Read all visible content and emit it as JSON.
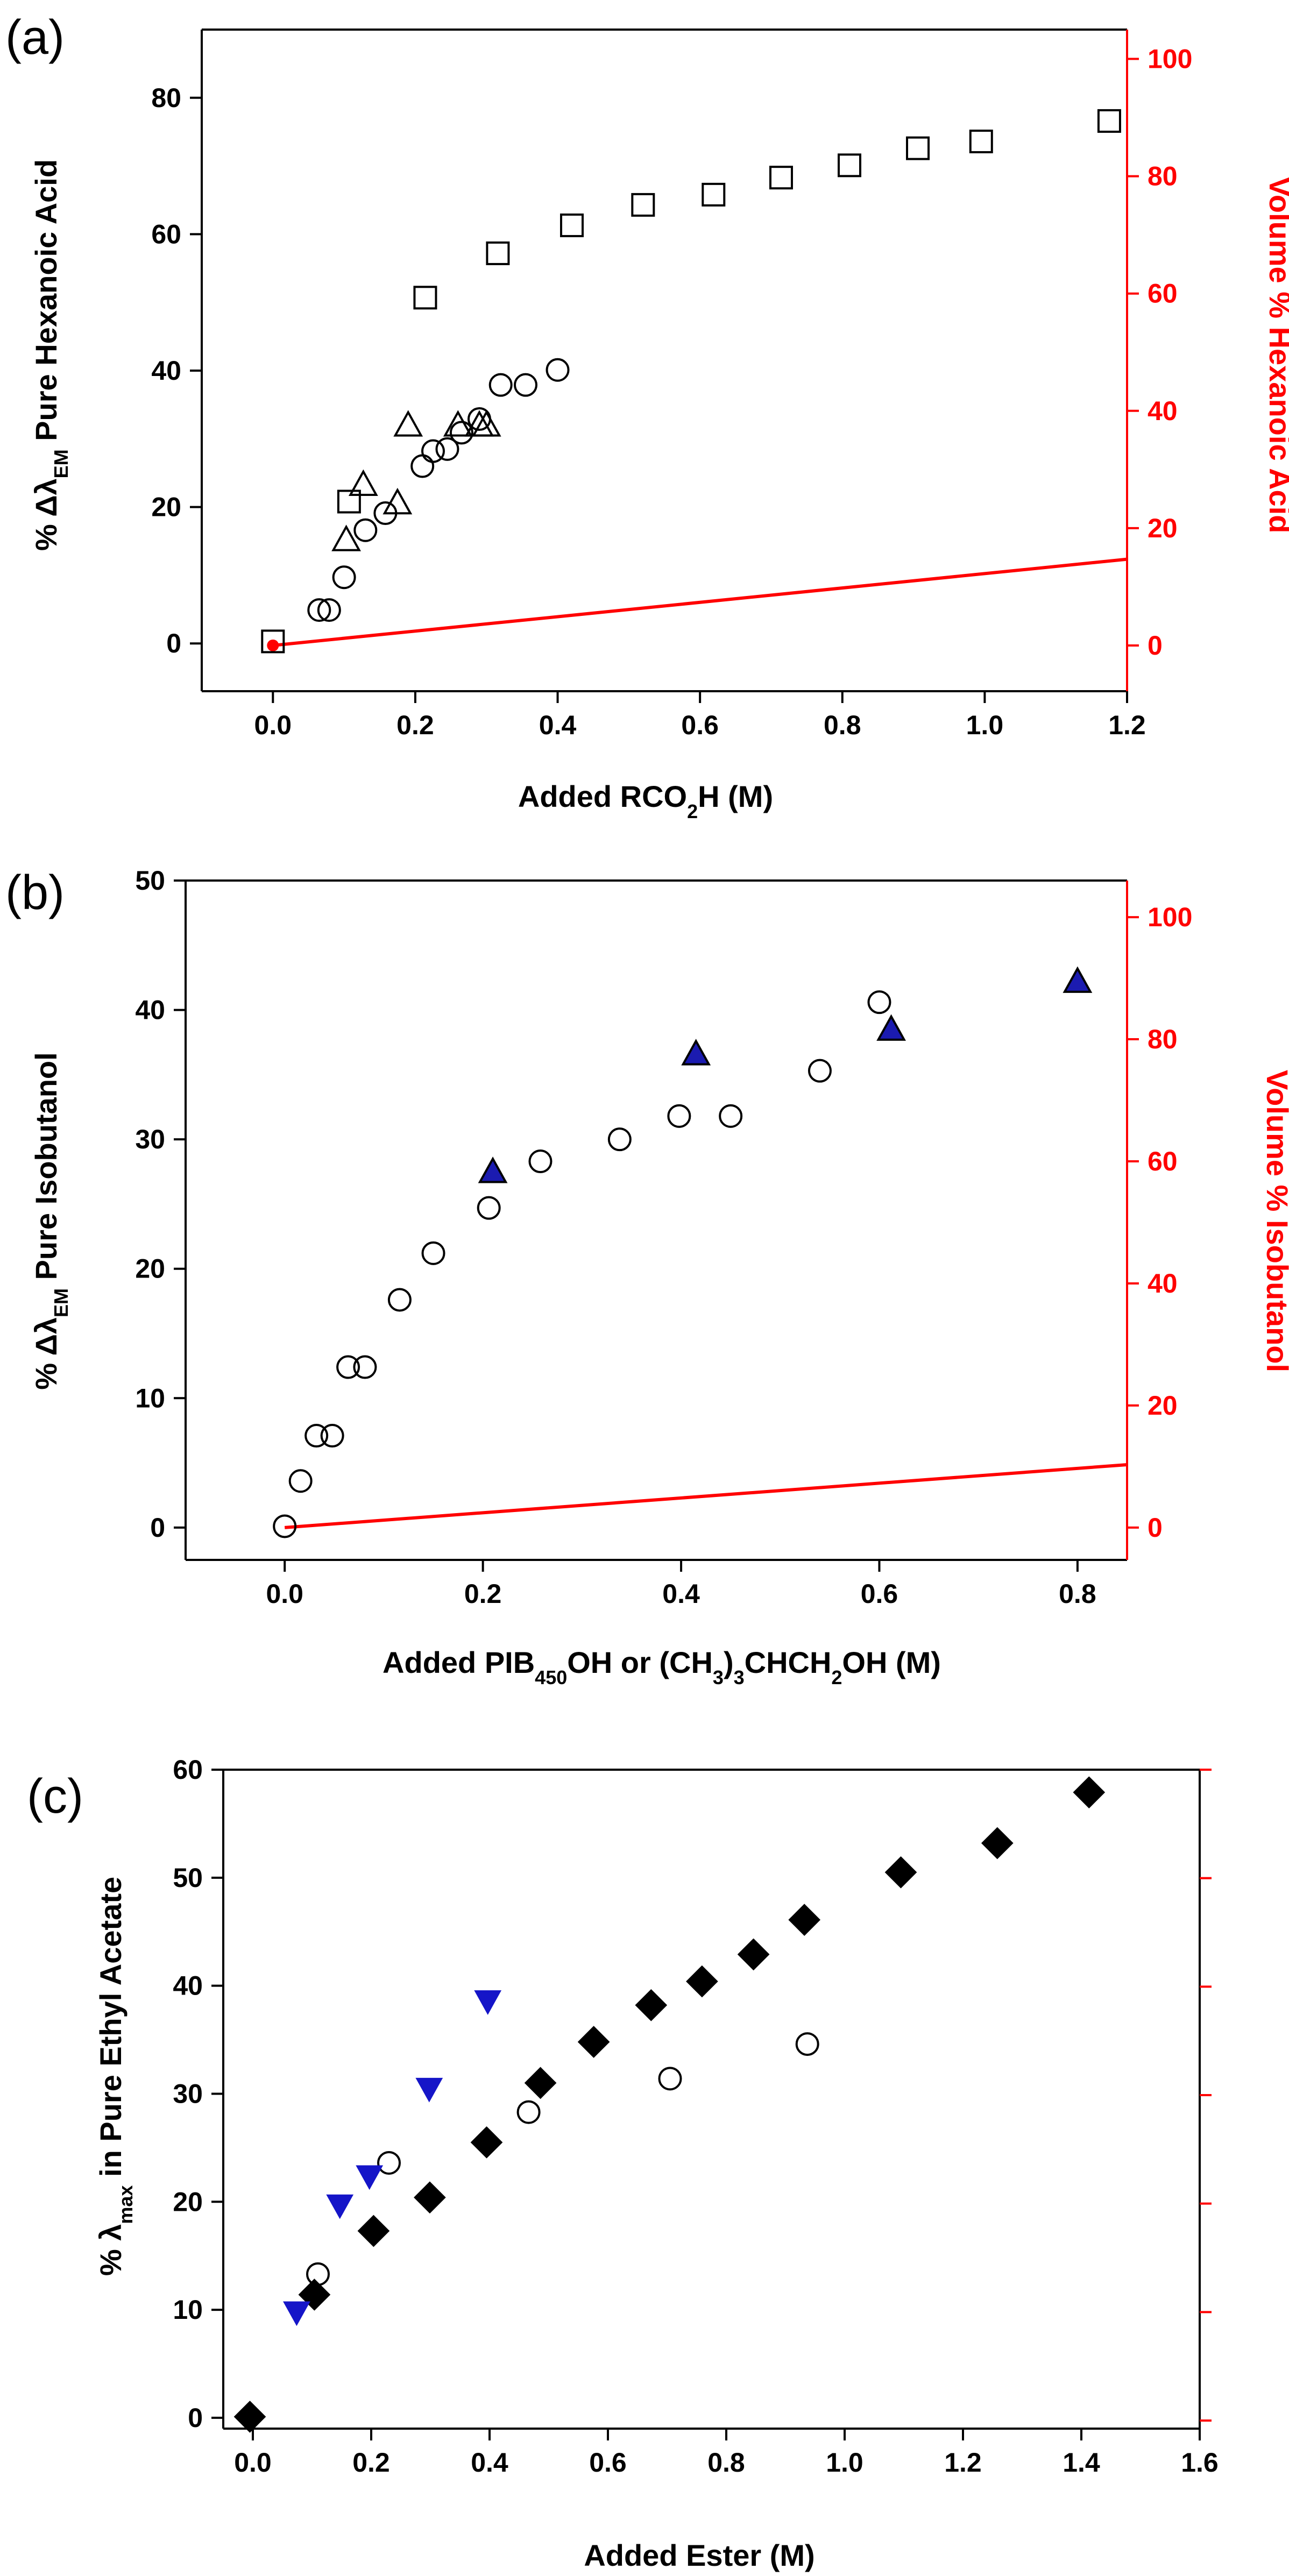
{
  "chart_data": [
    {
      "panel_label": "(a)",
      "type": "scatter",
      "xlabel_parts": [
        "Added RCO",
        "2",
        "H (M)"
      ],
      "ylabel_parts": [
        "% ",
        "Δλ",
        "EM",
        " Pure Hexanoic Acid"
      ],
      "y2label": "Volume % Hexanoic Acid",
      "xlim": [
        -0.1,
        1.2
      ],
      "ylim": [
        -7,
        90
      ],
      "y2lim": [
        -7.8,
        105
      ],
      "xticks": [
        0.0,
        0.2,
        0.4,
        0.6,
        0.8,
        1.0,
        1.2
      ],
      "xtick_labels": [
        "0.0",
        "0.2",
        "0.4",
        "0.6",
        "0.8",
        "1.0",
        "1.2"
      ],
      "yticks": [
        0,
        20,
        40,
        60,
        80
      ],
      "ytick_labels": [
        "0",
        "20",
        "40",
        "60",
        "80"
      ],
      "y2ticks": [
        0,
        20,
        40,
        60,
        80,
        100
      ],
      "y2tick_labels": [
        "0",
        "20",
        "40",
        "60",
        "80",
        "100"
      ],
      "series": [
        {
          "name": "squares",
          "marker": "square",
          "fill": "none",
          "stroke": "#000000",
          "x": [
            0.0,
            0.107,
            0.214,
            0.316,
            0.42,
            0.52,
            0.619,
            0.714,
            0.81,
            0.906,
            0.995,
            1.175
          ],
          "y": [
            0.3,
            20.8,
            50.7,
            57.2,
            61.3,
            64.3,
            65.8,
            68.3,
            70.1,
            72.6,
            73.6,
            76.6
          ]
        },
        {
          "name": "circles",
          "marker": "circle",
          "fill": "none",
          "stroke": "#000000",
          "x": [
            0.065,
            0.079,
            0.1,
            0.13,
            0.158,
            0.21,
            0.225,
            0.245,
            0.265,
            0.29,
            0.32,
            0.355,
            0.4
          ],
          "y": [
            4.9,
            4.9,
            9.7,
            16.6,
            19.1,
            26.0,
            28.2,
            28.5,
            30.9,
            32.9,
            37.9,
            37.9,
            40.1
          ]
        },
        {
          "name": "triangles",
          "marker": "triangle-up",
          "fill": "none",
          "stroke": "#000000",
          "x": [
            0.103,
            0.127,
            0.175,
            0.19,
            0.26,
            0.29,
            0.3
          ],
          "y": [
            15.2,
            23.3,
            20.6,
            32.0,
            32.0,
            32.0,
            32.0
          ]
        }
      ],
      "y2_series": [
        {
          "name": "volume percent line",
          "type": "line",
          "stroke": "#ff0000",
          "x": [
            0.0,
            1.2
          ],
          "y": [
            0.0,
            14.7
          ]
        },
        {
          "name": "origin marker",
          "type": "point",
          "fill": "#ff0000",
          "x": [
            0.0
          ],
          "y": [
            0.0
          ]
        }
      ]
    },
    {
      "panel_label": "(b)",
      "type": "scatter",
      "xlabel_parts": [
        "Added PIB",
        "450",
        "OH or (CH",
        "3",
        ")",
        "3",
        "CHCH",
        "2",
        "OH (M)"
      ],
      "ylabel_parts": [
        "% ",
        "Δλ",
        "EM",
        " Pure Isobutanol"
      ],
      "y2label": "Volume % Isobutanol",
      "xlim": [
        -0.1,
        0.85
      ],
      "ylim": [
        -2.5,
        50
      ],
      "y2lim": [
        -5.3,
        106
      ],
      "xticks": [
        0.0,
        0.2,
        0.4,
        0.6,
        0.8
      ],
      "xtick_labels": [
        "0.0",
        "0.2",
        "0.4",
        "0.6",
        "0.8"
      ],
      "yticks": [
        0,
        10,
        20,
        30,
        40,
        50
      ],
      "ytick_labels": [
        "0",
        "10",
        "20",
        "30",
        "40",
        "50"
      ],
      "y2ticks": [
        0,
        20,
        40,
        60,
        80,
        100
      ],
      "y2tick_labels": [
        "0",
        "20",
        "40",
        "60",
        "80",
        "100"
      ],
      "series": [
        {
          "name": "circles",
          "marker": "circle",
          "fill": "none",
          "stroke": "#000000",
          "x": [
            0.0,
            0.016,
            0.032,
            0.048,
            0.064,
            0.081,
            0.116,
            0.15,
            0.206,
            0.258,
            0.338,
            0.398,
            0.45,
            0.54,
            0.6
          ],
          "y": [
            0.1,
            3.6,
            7.1,
            7.1,
            12.4,
            12.4,
            17.6,
            21.2,
            24.7,
            28.3,
            30.0,
            31.8,
            31.8,
            35.3,
            40.6
          ]
        },
        {
          "name": "filled triangles",
          "marker": "triangle-up",
          "fill": "#1b1bb0",
          "stroke": "#000000",
          "x": [
            0.21,
            0.415,
            0.612,
            0.8
          ],
          "y": [
            27.5,
            36.6,
            38.5,
            42.2
          ]
        }
      ],
      "y2_series": [
        {
          "name": "volume percent line",
          "type": "line",
          "stroke": "#ff0000",
          "x": [
            0.0,
            0.85
          ],
          "y": [
            0.0,
            10.3
          ]
        }
      ]
    },
    {
      "panel_label": "(c)",
      "type": "scatter",
      "xlabel_parts": [
        "Added Ester (M)"
      ],
      "ylabel_parts": [
        "% ",
        "λ",
        "max",
        " in Pure Ethyl Acetate"
      ],
      "xlim": [
        -0.05,
        1.6
      ],
      "ylim": [
        -1,
        60
      ],
      "xticks": [
        0.0,
        0.2,
        0.4,
        0.6,
        0.8,
        1.0,
        1.2,
        1.4,
        1.6
      ],
      "xtick_labels": [
        "0.0",
        "0.2",
        "0.4",
        "0.6",
        "0.8",
        "1.0",
        "1.2",
        "1.4",
        "1.6"
      ],
      "yticks": [
        0,
        10,
        20,
        30,
        40,
        50,
        60
      ],
      "ytick_labels": [
        "0",
        "10",
        "20",
        "30",
        "40",
        "50",
        "60"
      ],
      "right_axis_ticks_count": 7,
      "series": [
        {
          "name": "diamonds",
          "marker": "diamond",
          "fill": "#000000",
          "stroke": "#000000",
          "x": [
            -0.005,
            0.104,
            0.204,
            0.299,
            0.395,
            0.486,
            0.576,
            0.673,
            0.759,
            0.846,
            0.932,
            1.095,
            1.258,
            1.413
          ],
          "y": [
            0.1,
            11.4,
            17.3,
            20.4,
            25.5,
            31.0,
            34.8,
            38.2,
            40.4,
            42.9,
            46.1,
            50.5,
            53.2,
            57.9
          ]
        },
        {
          "name": "circles",
          "marker": "circle",
          "fill": "none",
          "stroke": "#000000",
          "x": [
            0.11,
            0.23,
            0.466,
            0.705,
            0.937
          ],
          "y": [
            13.3,
            23.6,
            28.3,
            31.4,
            34.6
          ]
        },
        {
          "name": "blue triangles",
          "marker": "triangle-down",
          "fill": "#1515c8",
          "stroke": "#1515c8",
          "x": [
            0.074,
            0.147,
            0.197,
            0.298,
            0.397
          ],
          "y": [
            9.8,
            19.7,
            22.4,
            30.5,
            38.6
          ]
        }
      ]
    }
  ]
}
